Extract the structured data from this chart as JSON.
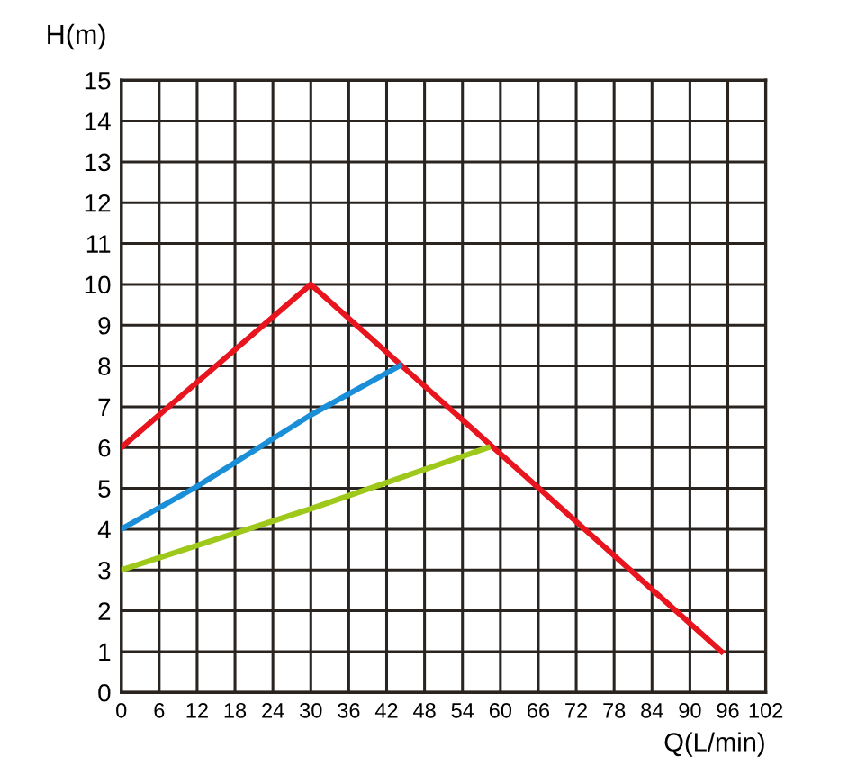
{
  "chart_data": {
    "type": "line",
    "xlabel": "Q(L/min)",
    "ylabel": "H(m)",
    "xlim": [
      0,
      102
    ],
    "xticks": [
      0,
      6,
      12,
      18,
      24,
      30,
      36,
      42,
      48,
      54,
      60,
      66,
      72,
      78,
      84,
      90,
      96,
      102
    ],
    "ylim": [
      0,
      15
    ],
    "yticks": [
      0,
      1,
      2,
      3,
      4,
      5,
      6,
      7,
      8,
      9,
      10,
      11,
      12,
      13,
      14,
      15
    ],
    "grid": true,
    "marker": "none",
    "line_style": "solid",
    "series": [
      {
        "color": "#e8141e",
        "x": [
          0,
          30,
          95
        ],
        "values": [
          6.0,
          10.0,
          1.0
        ]
      },
      {
        "color": "#1a8fd8",
        "x": [
          0,
          12,
          30,
          44
        ],
        "values": [
          4.0,
          5.05,
          6.8,
          8.0
        ]
      },
      {
        "color": "#9ec81a",
        "x": [
          0,
          30,
          58
        ],
        "values": [
          3.0,
          4.5,
          6.0
        ]
      }
    ]
  }
}
